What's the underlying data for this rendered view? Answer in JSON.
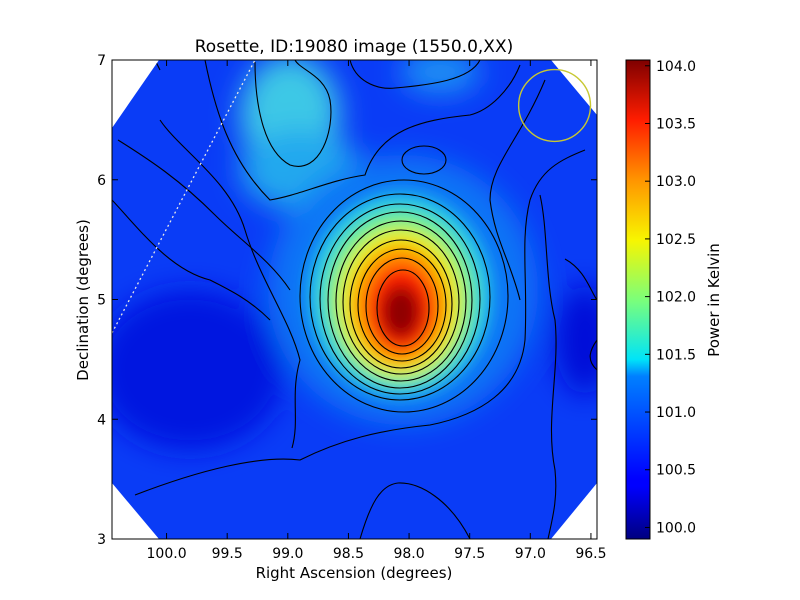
{
  "chart_data": {
    "type": "heatmap",
    "title": "Rosette, ID:19080 image (1550.0,XX)",
    "xlabel": "Right Ascension (degrees)",
    "ylabel": "Declination (degrees)",
    "xlim": [
      100.45,
      96.45
    ],
    "ylim": [
      3.0,
      7.0
    ],
    "x_ticks": [
      100.0,
      99.5,
      99.0,
      98.5,
      98.0,
      97.5,
      97.0,
      96.5
    ],
    "x_tick_labels": [
      "100.0",
      "99.5",
      "99.0",
      "98.5",
      "98.0",
      "97.5",
      "97.0",
      "96.5"
    ],
    "y_ticks": [
      3,
      4,
      5,
      6,
      7
    ],
    "y_tick_labels": [
      "3",
      "4",
      "5",
      "6",
      "7"
    ],
    "colorbar": {
      "label": "Power in Kelvin",
      "range": [
        99.9,
        104.05
      ],
      "ticks": [
        100.0,
        100.5,
        101.0,
        101.5,
        102.0,
        102.5,
        103.0,
        103.5,
        104.0
      ],
      "tick_labels": [
        "100.0",
        "100.5",
        "101.0",
        "101.5",
        "102.0",
        "102.5",
        "103.0",
        "103.5",
        "104.0"
      ],
      "colormap": "jet"
    },
    "peak": {
      "ra": 98.0,
      "dec": 4.85,
      "value": 104.0
    },
    "beam_circle": {
      "ra": 96.8,
      "dec": 6.62,
      "radius_deg": 0.3,
      "color": "#c8c832"
    },
    "grid": false,
    "contours": true
  }
}
